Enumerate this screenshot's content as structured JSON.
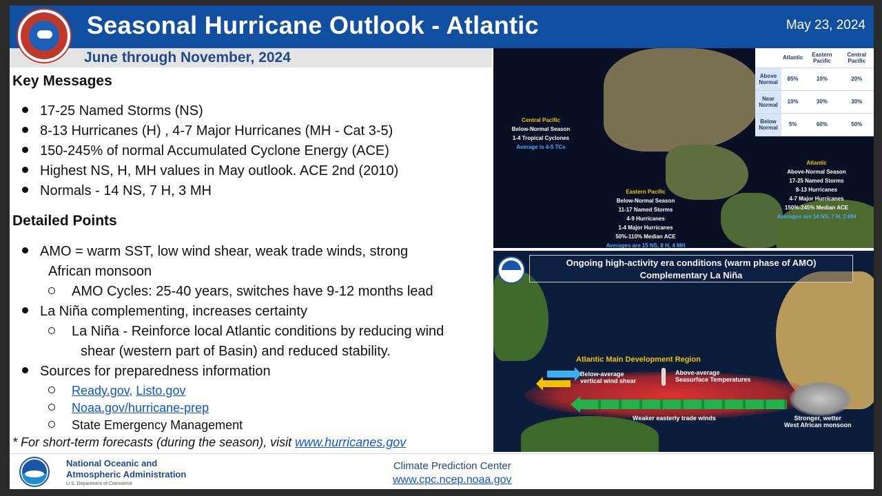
{
  "header": {
    "title": "Seasonal Hurricane Outlook - Atlantic",
    "date": "May 23, 2024",
    "subtitle": "June through November, 2024"
  },
  "key_messages": {
    "heading": "Key Messages",
    "bullets": [
      "17-25  Named Storms (NS)",
      "8-13 Hurricanes (H) , 4-7 Major Hurricanes (MH - Cat 3-5)",
      "150-245% of normal Accumulated Cyclone Energy (ACE)",
      "Highest NS, H, MH values in May outlook. ACE 2nd (2010)",
      "Normals - 14 NS, 7 H, 3 MH"
    ]
  },
  "detailed_points": {
    "heading": "Detailed Points",
    "amo_line1": "AMO = warm SST, low wind shear, weak trade winds, strong",
    "amo_line2": "African monsoon",
    "amo_sub": "AMO Cycles: 25-40 years, switches have 9-12 months lead",
    "lanina": "La Niña complementing, increases certainty",
    "lanina_sub1": "La Niña - Reinforce local Atlantic conditions by reducing wind",
    "lanina_sub2": "shear (western part of Basin) and reduced stability.",
    "sources": "Sources for preparedness information",
    "link_ready": "Ready.gov,",
    "link_listo": "Listo.gov",
    "link_noaa": "Noaa.gov/hurricane-prep",
    "state_em": "State Emergency Management",
    "footnote_prefix": "* For short-term forecasts (during the season), visit ",
    "footnote_link": "www.hurricanes.gov"
  },
  "prob_table": {
    "headers": [
      "",
      "Atlantic",
      "Eastern Pacific",
      "Central Pacific"
    ],
    "rows": [
      {
        "label": "Above Normal",
        "atlantic": "85%",
        "eastern": "10%",
        "central": "20%"
      },
      {
        "label": "Near Normal",
        "atlantic": "10%",
        "eastern": "30%",
        "central": "30%"
      },
      {
        "label": "Below Normal",
        "atlantic": "5%",
        "eastern": "60%",
        "central": "50%"
      }
    ]
  },
  "regions": {
    "central": {
      "name": "Central Pacific",
      "l1": "Below-Normal Season",
      "l2": "1-4 Tropical Cyclones",
      "avg": "Average is 4-5 TCs"
    },
    "eastern": {
      "name": "Eastern Pacific",
      "l1": "Below-Normal Season",
      "l2": "11-17 Named Storms",
      "l3": "4-9  Hurricanes",
      "l4": "1-4  Major Hurricanes",
      "l5": "50%-110% Median ACE",
      "avg": "Averages are 15 NS, 8 H, 4 MH"
    },
    "atlantic": {
      "name": "Atlantic",
      "l1": "Above-Normal Season",
      "l2": "17-25 Named Storms",
      "l3": "8-13 Hurricanes",
      "l4": "4-7 Major Hurricanes",
      "l5": "150%-245% Median ACE",
      "avg": "Averages are 14 NS, 7 H, 3 MH"
    }
  },
  "conditions_map": {
    "box_line1": "Ongoing high-activity era conditions (warm phase of AMO)",
    "box_line2": "Complementary La Niña",
    "mdr": "Atlantic Main Development Region",
    "shear1": "Below-average",
    "shear2": "vertical wind shear",
    "sst1": "Above-average",
    "sst2": "Seasurface Temperatures",
    "trade": "Weaker easterly trade winds",
    "monsoon1": "Stronger, wetter",
    "monsoon2": "West African monsoon"
  },
  "footer": {
    "noaa1": "National Oceanic and",
    "noaa2": "Atmospheric Administration",
    "dept": "U.S. Department of Commerce",
    "cpc": "Climate Prediction Center",
    "cpc_url": "www.cpc.ncep.noaa.gov"
  },
  "colors": {
    "header_blue": "#1150a0",
    "subtitle_text": "#1e4a8c",
    "link": "#1155cc",
    "region_heading": "#f2c200",
    "region_avg": "#4aa8ff"
  }
}
